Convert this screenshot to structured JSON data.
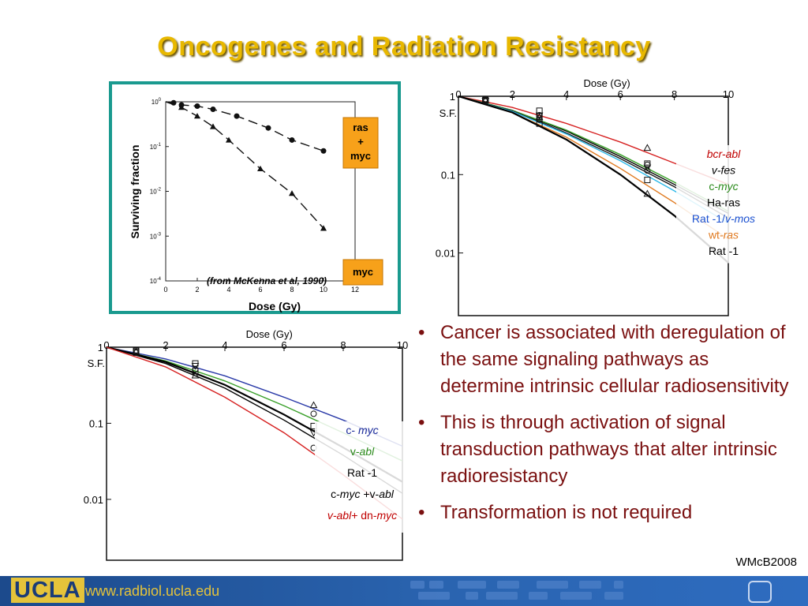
{
  "slide": {
    "title": "Oncogenes and Radiation Resistancy",
    "credit": "WMcB2008",
    "bullets": [
      "Cancer is associated with deregulation of the same signaling pathways as determine intrinsic cellular radiosensitivity",
      "This is through activation of signal transduction pathways that alter intrinsic radioresistancy",
      "Transformation is not required"
    ]
  },
  "footer": {
    "logo": "UCLA",
    "url": "www.radbiol.ucla.edu"
  },
  "colors": {
    "title": "#e8b800",
    "bullet_text": "#7a1010",
    "panel_border": "#1a9a8f",
    "label_box": "#f7a11a",
    "footer": "#2a64b0"
  },
  "chart_data": [
    {
      "type": "scatter",
      "ylabel": "Surviving fraction",
      "xlabel": "Dose (Gy)",
      "annotation": "(from McKenna et al, 1990)",
      "xticks": [
        "0",
        "2",
        "4",
        "6",
        "8",
        "10",
        "12"
      ],
      "yticks": [
        "10^0",
        "10^-1",
        "10^-2",
        "10^-3",
        "10^-4"
      ],
      "xlim": [
        0,
        12
      ],
      "ylim_log10": [
        -4,
        0
      ],
      "series": [
        {
          "name": "ras + myc",
          "marker": "circle",
          "x": [
            0,
            0.5,
            1.0,
            2.0,
            3.0,
            4.5,
            6.5,
            8.0,
            10.0
          ],
          "y": [
            1.0,
            0.95,
            0.85,
            0.8,
            0.68,
            0.48,
            0.26,
            0.14,
            0.08
          ]
        },
        {
          "name": "myc",
          "marker": "triangle",
          "x": [
            0,
            1.0,
            2.0,
            3.0,
            4.0,
            6.0,
            8.0,
            10.0
          ],
          "y": [
            1.0,
            0.75,
            0.48,
            0.28,
            0.14,
            0.032,
            0.009,
            0.0015
          ]
        }
      ],
      "labels": [
        {
          "text_lines": [
            "ras",
            "+",
            "myc"
          ]
        },
        {
          "text_lines": [
            "myc"
          ]
        }
      ]
    },
    {
      "type": "line",
      "title": "Dose (Gy)",
      "xticks": [
        "0",
        "2",
        "4",
        "6",
        "8",
        "10"
      ],
      "yticks": [
        "1",
        "0.1",
        "0.01"
      ],
      "ylabel": "S.F.",
      "xlim": [
        0,
        10
      ],
      "ylim_log10": [
        -2.8,
        0
      ],
      "series": [
        {
          "name": "bcr-abl",
          "color": "#d62020",
          "x": [
            0,
            2,
            4,
            6,
            8,
            10
          ],
          "y": [
            1.0,
            0.72,
            0.45,
            0.26,
            0.14,
            0.075
          ]
        },
        {
          "name": "v-fes",
          "color": "#000000",
          "x": [
            0,
            2,
            4,
            6,
            8,
            10
          ],
          "y": [
            1.0,
            0.66,
            0.36,
            0.17,
            0.075,
            0.032
          ]
        },
        {
          "name": "c-myc",
          "color": "#3aa02a",
          "x": [
            0,
            2,
            4,
            6,
            8,
            10
          ],
          "y": [
            1.0,
            0.66,
            0.37,
            0.18,
            0.08,
            0.034
          ]
        },
        {
          "name": "Ha-ras",
          "color": "#1a1a1a",
          "x": [
            0,
            2,
            4,
            6,
            8,
            10
          ],
          "y": [
            1.0,
            0.65,
            0.34,
            0.16,
            0.07,
            0.028
          ]
        },
        {
          "name": "Rat -1/v-mos",
          "color": "#2cb8e8",
          "x": [
            0,
            2,
            4,
            6,
            8,
            10
          ],
          "y": [
            1.0,
            0.64,
            0.33,
            0.15,
            0.062,
            0.024
          ]
        },
        {
          "name": "wt-ras",
          "color": "#e07a20",
          "x": [
            0,
            2,
            4,
            6,
            8,
            10
          ],
          "y": [
            1.0,
            0.62,
            0.3,
            0.12,
            0.044,
            0.015
          ]
        },
        {
          "name": "Rat -1",
          "color": "#000000",
          "x": [
            0,
            2,
            4,
            6,
            8,
            10
          ],
          "y": [
            1.0,
            0.62,
            0.28,
            0.1,
            0.03,
            0.0075
          ]
        }
      ],
      "legend_italic": [
        {
          "parts": [
            {
              "t": "bcr-abl",
              "i": true,
              "c": "#c00000"
            }
          ]
        },
        {
          "parts": [
            {
              "t": "v-fes",
              "i": true,
              "c": "#000000"
            }
          ]
        },
        {
          "parts": [
            {
              "t": "c-",
              "i": false,
              "c": "#2a8a1a"
            },
            {
              "t": "myc",
              "i": true,
              "c": "#2a8a1a"
            }
          ]
        },
        {
          "parts": [
            {
              "t": "Ha-ras",
              "i": false,
              "c": "#000000"
            }
          ]
        },
        {
          "parts": [
            {
              "t": "Rat -1/",
              "i": false,
              "c": "#1a50d0"
            },
            {
              "t": "v-mos",
              "i": true,
              "c": "#1a50d0"
            }
          ]
        },
        {
          "parts": [
            {
              "t": "wt-",
              "i": false,
              "c": "#e07a20"
            },
            {
              "t": "ras",
              "i": true,
              "c": "#e07a20"
            }
          ]
        },
        {
          "parts": [
            {
              "t": "Rat -1",
              "i": false,
              "c": "#000000"
            }
          ]
        }
      ]
    },
    {
      "type": "line",
      "title": "Dose (Gy)",
      "xticks": [
        "0",
        "2",
        "4",
        "6",
        "8",
        "10"
      ],
      "yticks": [
        "1",
        "0.1",
        "0.01"
      ],
      "ylabel": "S.F.",
      "xlim": [
        0,
        10
      ],
      "ylim_log10": [
        -2.8,
        0
      ],
      "series": [
        {
          "name": "c- myc",
          "color": "#2a3aa8",
          "x": [
            0,
            2,
            4,
            6,
            8,
            10
          ],
          "y": [
            1.0,
            0.7,
            0.42,
            0.22,
            0.11,
            0.05
          ]
        },
        {
          "name": "v-abl",
          "color": "#3aa02a",
          "x": [
            0,
            2,
            4,
            6,
            8,
            10
          ],
          "y": [
            1.0,
            0.66,
            0.36,
            0.17,
            0.075,
            0.032
          ]
        },
        {
          "name": "Rat -1",
          "color": "#000000",
          "x": [
            0,
            2,
            4,
            6,
            8,
            10
          ],
          "y": [
            1.0,
            0.64,
            0.32,
            0.13,
            0.048,
            0.017
          ]
        },
        {
          "name": "c-myc +v-abl",
          "color": "#000000",
          "x": [
            0,
            2,
            4,
            6,
            8,
            10
          ],
          "y": [
            1.0,
            0.61,
            0.29,
            0.11,
            0.038,
            0.012
          ]
        },
        {
          "name": "v-abl+ dn-myc",
          "color": "#d62020",
          "x": [
            0,
            2,
            4,
            6,
            8,
            10
          ],
          "y": [
            1.0,
            0.55,
            0.22,
            0.075,
            0.021,
            0.0055
          ]
        }
      ],
      "legend_italic": [
        {
          "parts": [
            {
              "t": "c- ",
              "i": false,
              "c": "#1a2a9a"
            },
            {
              "t": "myc",
              "i": true,
              "c": "#1a2a9a"
            }
          ]
        },
        {
          "parts": [
            {
              "t": "v-",
              "i": false,
              "c": "#2a8a1a"
            },
            {
              "t": "abl",
              "i": true,
              "c": "#2a8a1a"
            }
          ]
        },
        {
          "parts": [
            {
              "t": "Rat -1",
              "i": false,
              "c": "#000000"
            }
          ]
        },
        {
          "parts": [
            {
              "t": "c-",
              "i": false,
              "c": "#000000"
            },
            {
              "t": "myc",
              "i": true,
              "c": "#000000"
            },
            {
              "t": " +v-",
              "i": false,
              "c": "#000000"
            },
            {
              "t": "abl",
              "i": true,
              "c": "#000000"
            }
          ]
        },
        {
          "parts": [
            {
              "t": "v-abl+",
              "i": true,
              "c": "#c00000"
            },
            {
              "t": " dn-",
              "i": false,
              "c": "#c00000"
            },
            {
              "t": "myc",
              "i": true,
              "c": "#c00000"
            }
          ]
        }
      ]
    }
  ]
}
